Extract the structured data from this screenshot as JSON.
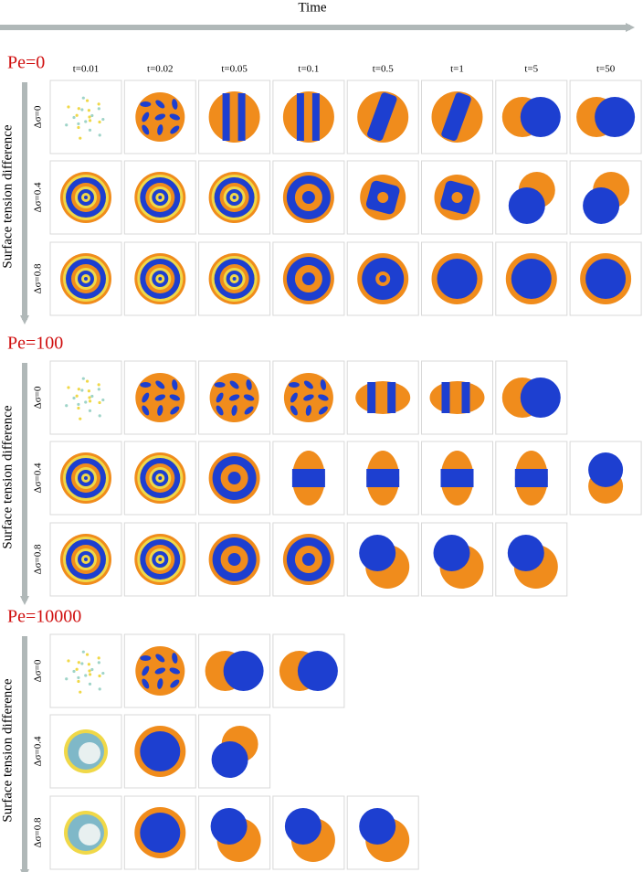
{
  "axis_labels": {
    "time": "Time",
    "surface_tension": "Surface tension difference"
  },
  "columns": [
    "t=0.01",
    "t=0.02",
    "t=0.05",
    "t=0.1",
    "t=0.5",
    "t=1",
    "t=5",
    "t=50"
  ],
  "sections": [
    {
      "title": "Pe=0",
      "rows": [
        "Δσ=0",
        "Δσ=0.4",
        "Δσ=0.8"
      ]
    },
    {
      "title": "Pe=100",
      "rows": [
        "Δσ=0",
        "Δσ=0.4",
        "Δσ=0.8"
      ]
    },
    {
      "title": "Pe=10000",
      "rows": [
        "Δσ=0",
        "Δσ=0.4",
        "Δσ=0.8"
      ]
    }
  ]
}
